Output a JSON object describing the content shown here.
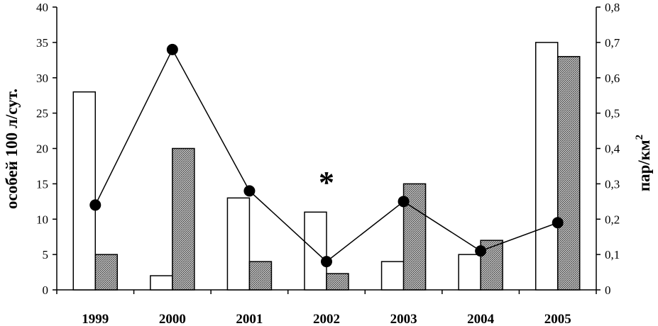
{
  "chart_data": {
    "type": "bar",
    "categories": [
      "1999",
      "2000",
      "2001",
      "2002",
      "2003",
      "2004",
      "2005"
    ],
    "series": [
      {
        "kind": "bar",
        "axis": "left",
        "fill": "#ffffff",
        "values": [
          28,
          2,
          13,
          11,
          4,
          5,
          35
        ]
      },
      {
        "kind": "bar",
        "axis": "left",
        "fill": "hatched",
        "values": [
          5,
          20,
          4,
          2.3,
          15,
          7,
          33
        ]
      },
      {
        "kind": "line",
        "axis": "right",
        "marker": "circle",
        "values": [
          0.24,
          0.68,
          0.28,
          0.08,
          0.25,
          0.11,
          0.19
        ]
      }
    ],
    "ylabel_left": "особей 100 л/сут.",
    "ylabel_right": "пар/км",
    "ylabel_right_sup": "2",
    "ylim_left": [
      0,
      40
    ],
    "ylim_right": [
      0,
      0.8
    ],
    "yticks_left": [
      "0",
      "5",
      "10",
      "15",
      "20",
      "25",
      "30",
      "35",
      "40"
    ],
    "yticks_right": [
      "0",
      "0,1",
      "0,2",
      "0,3",
      "0,4",
      "0,5",
      "0,6",
      "0,7",
      "0,8"
    ],
    "annotation": {
      "text": "*",
      "category": "2002"
    },
    "grid": false,
    "legend": "none"
  }
}
